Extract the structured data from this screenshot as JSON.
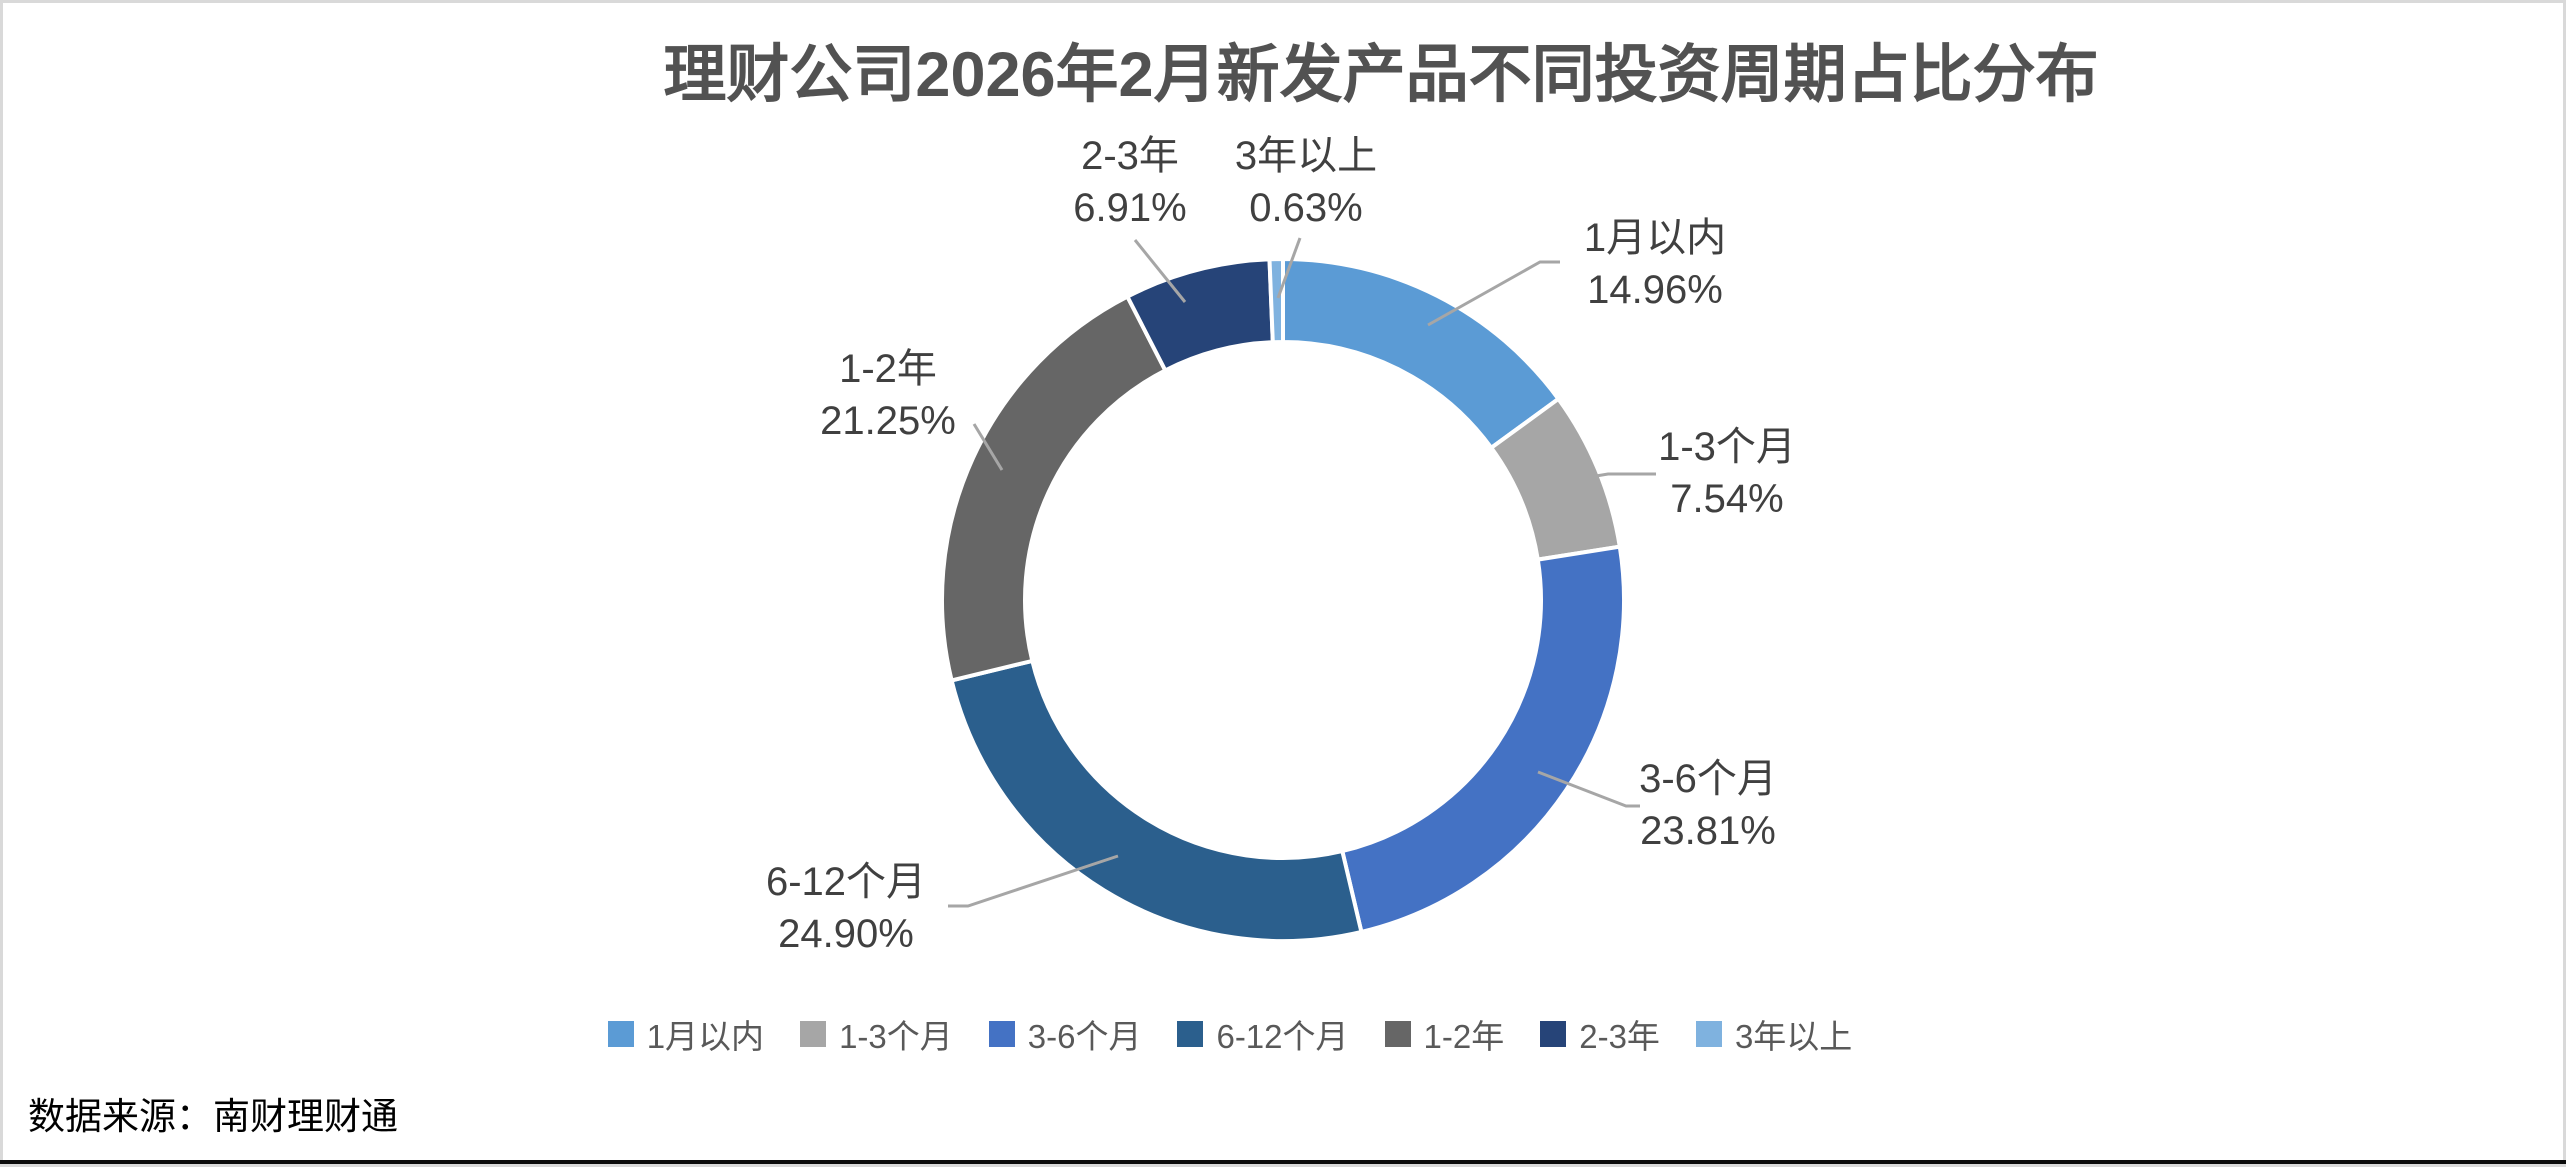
{
  "title": "理财公司2026年2月新发产品不同投资周期占比分布",
  "source": "数据来源：南财理财通",
  "chart_data": {
    "type": "pie",
    "subtype": "donut",
    "title": "理财公司2026年2月新发产品不同投资周期占比分布",
    "categories": [
      "1月以内",
      "1-3个月",
      "3-6个月",
      "6-12个月",
      "1-2年",
      "2-3年",
      "3年以上"
    ],
    "values": [
      14.96,
      7.54,
      23.81,
      24.9,
      21.25,
      6.91,
      0.63
    ],
    "display_values": [
      "14.96%",
      "7.54%",
      "23.81%",
      "24.90%",
      "21.25%",
      "6.91%",
      "0.63%"
    ],
    "colors": [
      "#5B9BD5",
      "#A6A6A6",
      "#4472C4",
      "#2B5F8D",
      "#666666",
      "#264478",
      "#7FB2DF"
    ],
    "start_angle_deg": 0,
    "direction": "clockwise",
    "donut_hole_ratio": 0.76,
    "legend_position": "bottom",
    "data_label_style": "category name + percent, outside with gray leader lines",
    "leader_line_color": "#A6A6A6",
    "source": "数据来源：南财理财通"
  }
}
